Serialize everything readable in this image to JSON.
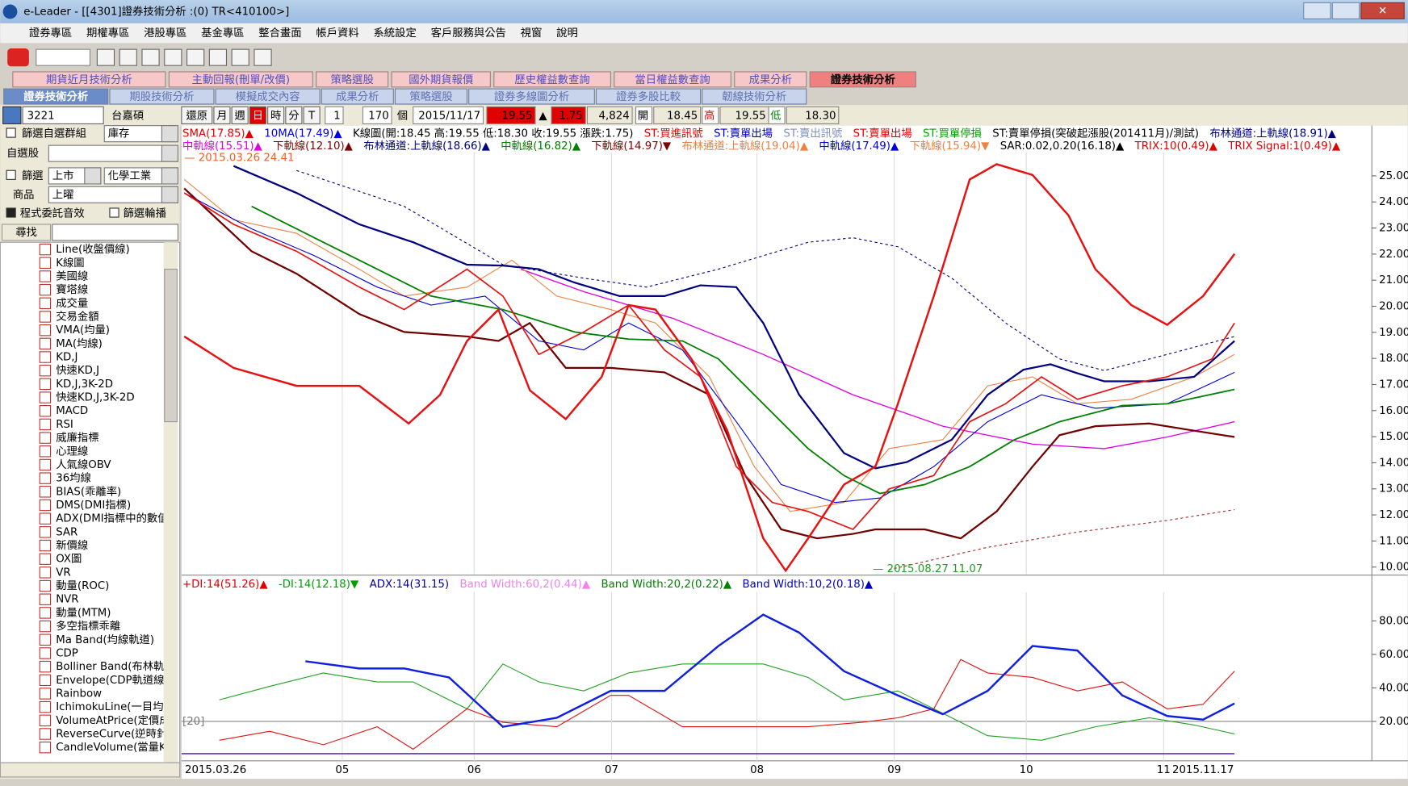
{
  "window": {
    "title": "e-Leader - [[4301]證券技術分析 :(0) TR<410100>]"
  },
  "menu": [
    "證券專區",
    "期權專區",
    "港股專區",
    "基金專區",
    "整合畫面",
    "帳戶資料",
    "系統設定",
    "客戶服務與公告",
    "視窗",
    "說明"
  ],
  "tabs_top": [
    "期貨近月技術分析",
    "主動回報(刪單/改價)",
    "策略選股",
    "國外期貨報價",
    "歷史權益數查詢",
    "當日權益數查詢",
    "成果分析",
    "證券技術分析"
  ],
  "tabs_sub": [
    "證券技術分析",
    "期股技術分析",
    "模擬成交內容",
    "成果分析",
    "策略選股",
    "證券多線圖分析",
    "證券多股比較",
    "韌線技術分析"
  ],
  "quote": {
    "code": "3221",
    "name": "台嘉碩",
    "buttons": [
      "還原",
      "月",
      "週",
      "日",
      "時",
      "分",
      "T"
    ],
    "count": "1",
    "bars": "170",
    "unit": "個",
    "date": "2015/11/17",
    "price": "19.55",
    "arrow": "▲",
    "change": "1.75",
    "volume": "4,824",
    "open_label": "開",
    "open": "18.45",
    "high_label": "高",
    "high": "19.55",
    "low_label": "低",
    "low": "18.30"
  },
  "sidebar": {
    "group_filter": "篩選自選群組",
    "group": "庫存",
    "watchlist": "自選股",
    "filter": "篩選",
    "market": "上市",
    "industry": "化學工業",
    "product_label": "商品",
    "product": "上曜",
    "sound": "程式委託音效",
    "rotate": "篩選輪播",
    "search": "尋找",
    "indicators": [
      "Line(收盤價線)",
      "K線圖",
      "美國線",
      "寶塔線",
      "成交量",
      "交易金額",
      "VMA(均量)",
      "MA(均線)",
      "KD,J",
      "快速KD,J",
      "KD,J,3K-2D",
      "快速KD,J,3K-2D",
      "MACD",
      "RSI",
      "威廉指標",
      "心理線",
      "人氣線OBV",
      "36均線",
      "BIAS(乖離率)",
      "DMS(DMI指標)",
      "ADX(DMI指標中的數值",
      "SAR",
      "新價線",
      "OX圖",
      "VR",
      "動量(ROC)",
      "NVR",
      "動量(MTM)",
      "多空指標乖離",
      "Ma Band(均線軌道)",
      "CDP",
      "Bolliner Band(布林軌",
      "Envelope(CDP軌道線",
      "Rainbow",
      "IchimokuLine(一目均",
      "VolumeAtPrice(定價成",
      "ReverseCurve(逆時針",
      "CandleVolume(當量K"
    ]
  },
  "chart": {
    "legend_row1": [
      {
        "text": "SMA(17.85)▲",
        "color": "#e00000"
      },
      {
        "text": "10MA(17.49)▲",
        "color": "#0000e0"
      },
      {
        "text": "K線圖(開:18.45 高:19.55 低:18.30 收:19.55 漲跌:1.75)",
        "color": "#000000"
      },
      {
        "text": "ST:買進訊號",
        "color": "#e00000"
      },
      {
        "text": "ST:賣單出場",
        "color": "#0000c0"
      },
      {
        "text": "ST:賣出訊號",
        "color": "#8090c0"
      },
      {
        "text": "ST:賣單出場",
        "color": "#e00000"
      },
      {
        "text": "ST:買單停損",
        "color": "#00a000"
      },
      {
        "text": "ST:賣單停損(突破起漲股(201411月)/測試)",
        "color": "#000000"
      },
      {
        "text": "布林通道:上軌線(18.91)▲",
        "color": "#000080"
      }
    ],
    "legend_row2": [
      {
        "text": "中軌線(15.51)▲",
        "color": "#e000e0"
      },
      {
        "text": "下軌線(12.10)▲",
        "color": "#800000"
      },
      {
        "text": "布林通道:上軌線(18.66)▲",
        "color": "#000080"
      },
      {
        "text": "中軌線(16.82)▲",
        "color": "#008000"
      },
      {
        "text": "下軌線(14.97)▼",
        "color": "#800000"
      },
      {
        "text": "布林通道:上軌線(19.04)▲",
        "color": "#f08040"
      },
      {
        "text": "中軌線(17.49)▲",
        "color": "#0000e0"
      },
      {
        "text": "下軌線(15.94)▼",
        "color": "#f08040"
      },
      {
        "text": "SAR:0.02,0.20(16.18)▲",
        "color": "#000000"
      },
      {
        "text": "TRIX:10(0.49)▲",
        "color": "#e00000"
      },
      {
        "text": "TRIX Signal:1(0.49)▲",
        "color": "#e00000"
      }
    ],
    "high_note": "— 2015.03.26  24.41",
    "low_note": "— 2015.08.27  11.07",
    "price_ticks": [
      "25.00",
      "24.00",
      "23.00",
      "22.00",
      "21.00",
      "20.00",
      "19.00",
      "18.00",
      "17.00",
      "16.00",
      "15.00",
      "14.00",
      "13.00",
      "12.00",
      "11.00",
      "10.00"
    ],
    "legend_lower": [
      {
        "text": "+DI:14(51.26)▲",
        "color": "#e00000"
      },
      {
        "text": "-DI:14(12.18)▼",
        "color": "#00a000"
      },
      {
        "text": "ADX:14(31.15)",
        "color": "#0000a0"
      },
      {
        "text": "Band Width:60,2(0.44)▲",
        "color": "#f080f0"
      },
      {
        "text": "Band Width:20,2(0.22)▲",
        "color": "#008000"
      },
      {
        "text": "Band Width:10,2(0.18)▲",
        "color": "#0000c0"
      }
    ],
    "lower_ticks": [
      "80.00",
      "60.00",
      "40.00",
      "20.00"
    ],
    "reference": "[20]",
    "dates": [
      "2015.03.26",
      "05",
      "06",
      "07",
      "08",
      "09",
      "10",
      "11",
      "2015.11.17"
    ]
  }
}
